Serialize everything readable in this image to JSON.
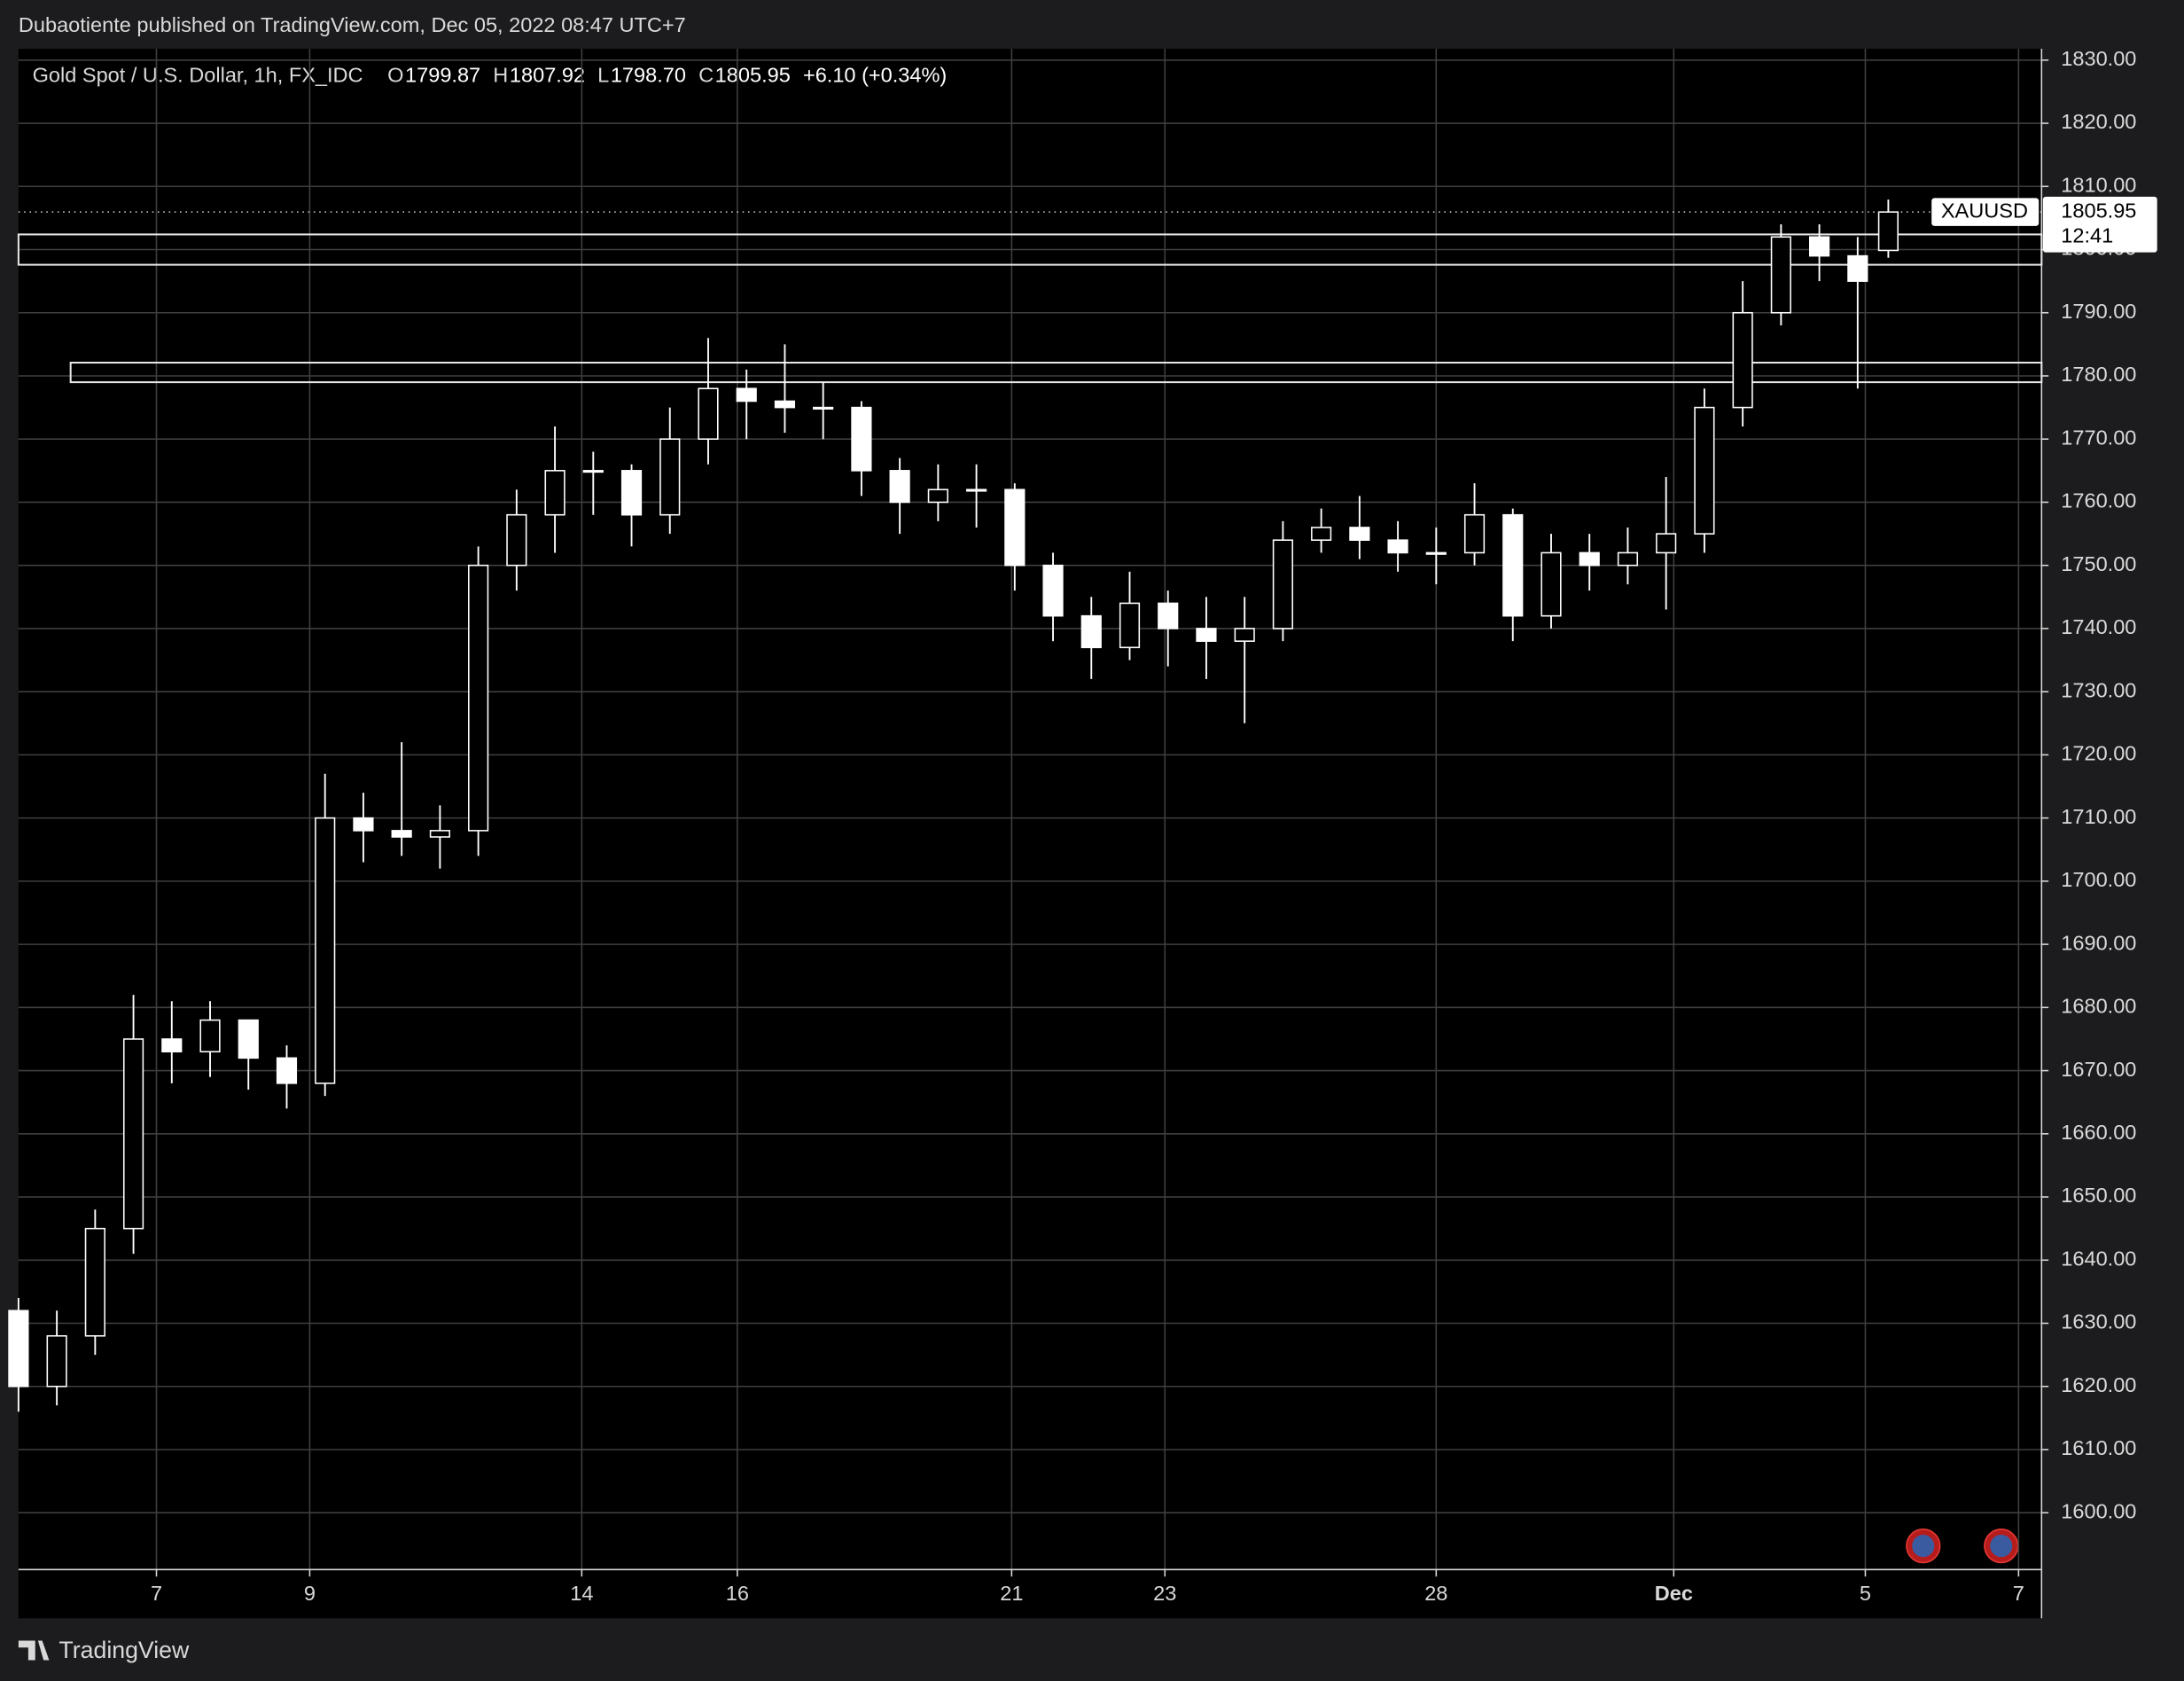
{
  "header": {
    "publisher": "Dubaotiente published on TradingView.com, Dec 05, 2022 08:47 UTC+7",
    "legend": "Gold Spot / U.S. Dollar, 1h, FX_IDC",
    "ohlc": [
      {
        "key": "O",
        "text": "1799.87"
      },
      {
        "key": "H",
        "text": "1807.92"
      },
      {
        "key": "L",
        "text": "1798.70"
      },
      {
        "key": "C",
        "text": "1805.95"
      }
    ],
    "change": "+6.10 (+0.34%)"
  },
  "footer": {
    "brand": "TradingView"
  },
  "chart_data": {
    "type": "candlestick",
    "x": [
      0,
      0.5,
      1,
      1.5,
      2,
      2.5,
      3,
      3.5,
      4,
      4.5,
      5,
      5.5,
      6,
      6.5,
      7,
      7.5,
      8,
      8.5,
      9,
      9.5,
      10,
      10.5,
      11,
      11.5,
      12,
      12.5,
      13,
      13.5,
      14,
      14.5,
      15,
      15.5,
      16,
      16.5,
      17,
      17.5,
      18,
      18.5,
      19,
      19.5,
      20,
      20.5,
      21,
      21.5,
      22,
      22.5,
      23,
      23.5,
      24,
      24.4
    ],
    "open": [
      1632,
      1620,
      1628,
      1645,
      1675,
      1673,
      1678,
      1672,
      1668,
      1710,
      1708,
      1707,
      1708,
      1750,
      1758,
      1765,
      1765,
      1758,
      1770,
      1778,
      1776,
      1775,
      1775,
      1765,
      1760,
      1762,
      1762,
      1750,
      1742,
      1737,
      1744,
      1740,
      1738,
      1740,
      1754,
      1756,
      1754,
      1752,
      1752,
      1758,
      1742,
      1752,
      1750,
      1752,
      1755,
      1775,
      1790,
      1802,
      1799,
      1799.87
    ],
    "high": [
      1634,
      1632,
      1648,
      1682,
      1681,
      1681,
      1676,
      1674,
      1717,
      1714,
      1722,
      1712,
      1753,
      1762,
      1772,
      1768,
      1766,
      1775,
      1786,
      1781,
      1785,
      1779,
      1776,
      1767,
      1766,
      1766,
      1763,
      1752,
      1745,
      1749,
      1746,
      1745,
      1745,
      1757,
      1759,
      1761,
      1757,
      1756,
      1763,
      1759,
      1755,
      1755,
      1756,
      1764,
      1778,
      1795,
      1804,
      1804,
      1802,
      1807.92
    ],
    "low": [
      1616,
      1617,
      1625,
      1641,
      1668,
      1669,
      1667,
      1664,
      1666,
      1703,
      1704,
      1702,
      1704,
      1746,
      1752,
      1758,
      1753,
      1755,
      1766,
      1770,
      1771,
      1770,
      1761,
      1755,
      1757,
      1756,
      1746,
      1738,
      1732,
      1735,
      1734,
      1732,
      1725,
      1738,
      1752,
      1751,
      1749,
      1747,
      1750,
      1738,
      1740,
      1746,
      1747,
      1743,
      1752,
      1772,
      1788,
      1795,
      1778,
      1798.7
    ],
    "close": [
      1620,
      1628,
      1645,
      1675,
      1673,
      1678,
      1672,
      1668,
      1710,
      1708,
      1707,
      1708,
      1750,
      1758,
      1765,
      1765,
      1758,
      1770,
      1778,
      1776,
      1775,
      1775,
      1765,
      1760,
      1762,
      1762,
      1750,
      1742,
      1737,
      1744,
      1740,
      1738,
      1740,
      1754,
      1756,
      1754,
      1752,
      1752,
      1758,
      1742,
      1752,
      1750,
      1752,
      1755,
      1775,
      1790,
      1802,
      1799,
      1795,
      1805.95
    ],
    "color": "#ffffff",
    "xlim": [
      0,
      26.4
    ],
    "xticks": [
      {
        "value": 1.8,
        "label": "7"
      },
      {
        "value": 3.8,
        "label": "9"
      },
      {
        "value": 7.35,
        "label": "14"
      },
      {
        "value": 9.38,
        "label": "16"
      },
      {
        "value": 12.96,
        "label": "21"
      },
      {
        "value": 14.96,
        "label": "23"
      },
      {
        "value": 18.5,
        "label": "28"
      },
      {
        "value": 21.6,
        "label": "Dec"
      },
      {
        "value": 24.1,
        "label": "5"
      },
      {
        "value": 26.1,
        "label": "7"
      }
    ],
    "ylim": [
      1591,
      1831.8
    ],
    "yticks": [
      {
        "value": 1600,
        "label": "1600.00"
      },
      {
        "value": 1610,
        "label": "1610.00"
      },
      {
        "value": 1620,
        "label": "1620.00"
      },
      {
        "value": 1630,
        "label": "1630.00"
      },
      {
        "value": 1640,
        "label": "1640.00"
      },
      {
        "value": 1650,
        "label": "1650.00"
      },
      {
        "value": 1660,
        "label": "1660.00"
      },
      {
        "value": 1670,
        "label": "1670.00"
      },
      {
        "value": 1680,
        "label": "1680.00"
      },
      {
        "value": 1690,
        "label": "1690.00"
      },
      {
        "value": 1700,
        "label": "1700.00"
      },
      {
        "value": 1710,
        "label": "1710.00"
      },
      {
        "value": 1720,
        "label": "1720.00"
      },
      {
        "value": 1730,
        "label": "1730.00"
      },
      {
        "value": 1740,
        "label": "1740.00"
      },
      {
        "value": 1750,
        "label": "1750.00"
      },
      {
        "value": 1760,
        "label": "1760.00"
      },
      {
        "value": 1770,
        "label": "1770.00"
      },
      {
        "value": 1780,
        "label": "1780.00"
      },
      {
        "value": 1790,
        "label": "1790.00"
      },
      {
        "value": 1800,
        "label": "1800.00"
      },
      {
        "value": 1810,
        "label": "1810.00"
      },
      {
        "value": 1820,
        "label": "1820.00"
      },
      {
        "value": 1830,
        "label": "1830.00"
      }
    ],
    "grid": true,
    "zones": [
      {
        "low": 1797.6,
        "high": 1802.4,
        "start": 0
      },
      {
        "low": 1779,
        "high": 1782.1,
        "start": 0.68
      }
    ],
    "last_price": {
      "symbol": "XAUUSD",
      "value": 1805.95,
      "countdown": "12:41"
    }
  }
}
